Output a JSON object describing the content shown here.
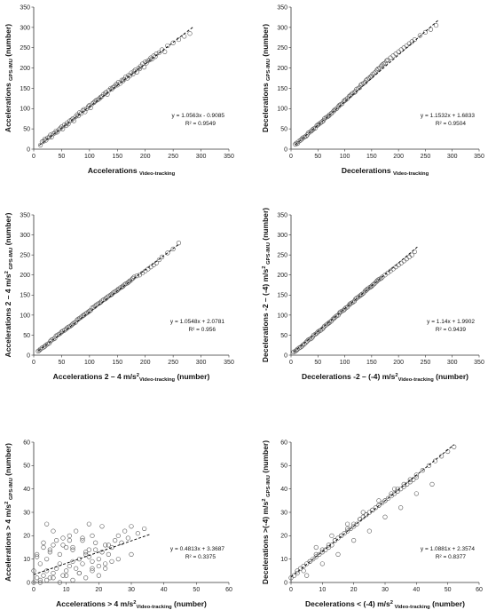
{
  "chart_data": [
    {
      "type": "scatter",
      "xlabel": "Accelerations Video-tracking",
      "ylabel": "Accelerations GPS-IMU (number)",
      "xlabel_parts": [
        {
          "t": "Accelerations "
        },
        {
          "t": "Video-tracking",
          "sub": true
        }
      ],
      "ylabel_parts": [
        {
          "t": "Accelerations "
        },
        {
          "t": "GPS-IMU",
          "sub": true
        },
        {
          "t": " (number)"
        }
      ],
      "xlim": [
        0,
        350
      ],
      "ylim": [
        0,
        350
      ],
      "xticks": [
        0,
        50,
        100,
        150,
        200,
        250,
        300,
        350
      ],
      "yticks": [
        0,
        50,
        100,
        150,
        200,
        250,
        300,
        350
      ],
      "equation": "y = 1.0563x - 0.9085",
      "r2": "R² = 0.9549",
      "slope": 1.0563,
      "intercept": -0.9085,
      "fit_range": [
        10,
        285
      ],
      "x": [
        12,
        15,
        18,
        20,
        22,
        25,
        28,
        30,
        32,
        35,
        38,
        40,
        42,
        45,
        48,
        50,
        52,
        55,
        58,
        60,
        62,
        65,
        68,
        70,
        72,
        75,
        78,
        80,
        82,
        85,
        88,
        90,
        92,
        95,
        98,
        100,
        102,
        105,
        108,
        110,
        112,
        115,
        118,
        120,
        122,
        125,
        128,
        130,
        132,
        135,
        138,
        140,
        142,
        145,
        148,
        150,
        152,
        155,
        158,
        160,
        162,
        165,
        168,
        170,
        172,
        175,
        178,
        180,
        182,
        185,
        188,
        190,
        192,
        195,
        198,
        200,
        202,
        205,
        208,
        210,
        212,
        215,
        218,
        220,
        225,
        230,
        235,
        240,
        250,
        260,
        270,
        280
      ],
      "y": [
        10,
        18,
        20,
        25,
        22,
        28,
        30,
        35,
        30,
        38,
        40,
        45,
        42,
        48,
        52,
        55,
        50,
        60,
        58,
        65,
        62,
        70,
        72,
        75,
        70,
        80,
        85,
        82,
        90,
        88,
        95,
        98,
        92,
        100,
        105,
        108,
        102,
        112,
        115,
        118,
        120,
        122,
        125,
        128,
        130,
        135,
        138,
        140,
        135,
        145,
        150,
        148,
        152,
        155,
        160,
        158,
        165,
        162,
        170,
        168,
        172,
        178,
        175,
        182,
        180,
        188,
        185,
        192,
        195,
        190,
        200,
        198,
        205,
        210,
        202,
        215,
        212,
        218,
        220,
        225,
        222,
        230,
        228,
        235,
        238,
        245,
        240,
        255,
        262,
        270,
        278,
        285
      ]
    },
    {
      "type": "scatter",
      "xlabel": "Decelerations Video-tracking",
      "ylabel": "Decelerations GPS-IMU (number)",
      "xlabel_parts": [
        {
          "t": "Decelerations "
        },
        {
          "t": "Video-tracking",
          "sub": true
        }
      ],
      "ylabel_parts": [
        {
          "t": "Decelerations "
        },
        {
          "t": "GPS-IMU",
          "sub": true
        },
        {
          "t": " (number)"
        }
      ],
      "xlim": [
        0,
        350
      ],
      "ylim": [
        0,
        350
      ],
      "xticks": [
        0,
        50,
        100,
        150,
        200,
        250,
        300,
        350
      ],
      "yticks": [
        0,
        50,
        100,
        150,
        200,
        250,
        300,
        350
      ],
      "equation": "y = 1.1532x + 1.6833",
      "r2": "R² = 0.9504",
      "slope": 1.1532,
      "intercept": 1.6833,
      "fit_range": [
        8,
        275
      ],
      "x": [
        8,
        10,
        12,
        15,
        18,
        20,
        22,
        25,
        28,
        30,
        32,
        35,
        38,
        40,
        42,
        45,
        48,
        50,
        52,
        55,
        58,
        60,
        62,
        65,
        68,
        70,
        72,
        75,
        78,
        80,
        82,
        85,
        88,
        90,
        92,
        95,
        98,
        100,
        102,
        105,
        108,
        110,
        112,
        115,
        118,
        120,
        122,
        125,
        128,
        130,
        132,
        135,
        138,
        140,
        142,
        145,
        148,
        150,
        152,
        155,
        158,
        160,
        162,
        165,
        168,
        170,
        172,
        175,
        178,
        180,
        185,
        190,
        195,
        200,
        205,
        210,
        215,
        220,
        225,
        230,
        240,
        250,
        260,
        270
      ],
      "y": [
        12,
        15,
        14,
        20,
        22,
        25,
        28,
        30,
        32,
        35,
        40,
        42,
        45,
        48,
        50,
        52,
        58,
        60,
        62,
        65,
        68,
        70,
        75,
        78,
        80,
        82,
        85,
        88,
        92,
        95,
        98,
        100,
        105,
        108,
        110,
        112,
        118,
        120,
        122,
        125,
        130,
        132,
        135,
        138,
        140,
        142,
        148,
        150,
        152,
        158,
        160,
        162,
        165,
        170,
        172,
        175,
        178,
        180,
        185,
        188,
        190,
        195,
        198,
        200,
        205,
        208,
        210,
        212,
        218,
        220,
        225,
        230,
        235,
        240,
        245,
        250,
        255,
        260,
        265,
        270,
        280,
        288,
        295,
        305
      ]
    },
    {
      "type": "scatter",
      "xlabel": "Accelerations 2 – 4 m/s² Video-tracking (number)",
      "ylabel": "Accelerations 2 – 4 m/s² GPS-IMU (number)",
      "xlabel_parts": [
        {
          "t": "Accelerations 2 – 4 m/s"
        },
        {
          "t": "2",
          "sup": true
        },
        {
          "t": "Video-tracking",
          "sub": true
        },
        {
          "t": " (number)"
        }
      ],
      "ylabel_parts": [
        {
          "t": "Accelerations 2 – 4 m/s"
        },
        {
          "t": "2",
          "sup": true
        },
        {
          "t": " GPS-IMU",
          "sub": true
        },
        {
          "t": " (number)"
        }
      ],
      "xlim": [
        0,
        350
      ],
      "ylim": [
        0,
        350
      ],
      "xticks": [
        0,
        50,
        100,
        150,
        200,
        250,
        300,
        350
      ],
      "yticks": [
        0,
        50,
        100,
        150,
        200,
        250,
        300,
        350
      ],
      "equation": "y = 1.0548x + 2.0781",
      "r2": "R² = 0.956",
      "slope": 1.0548,
      "intercept": 2.0781,
      "fit_range": [
        8,
        260
      ],
      "x": [
        8,
        10,
        12,
        15,
        18,
        20,
        22,
        25,
        28,
        30,
        32,
        35,
        38,
        40,
        42,
        45,
        48,
        50,
        52,
        55,
        58,
        60,
        62,
        65,
        68,
        70,
        72,
        75,
        78,
        80,
        82,
        85,
        88,
        90,
        92,
        95,
        98,
        100,
        102,
        105,
        108,
        110,
        112,
        115,
        118,
        120,
        122,
        125,
        128,
        130,
        132,
        135,
        138,
        140,
        142,
        145,
        148,
        150,
        152,
        155,
        158,
        160,
        162,
        165,
        168,
        170,
        172,
        175,
        178,
        180,
        185,
        190,
        195,
        200,
        205,
        210,
        215,
        220,
        225,
        230,
        240,
        250,
        260
      ],
      "y": [
        10,
        12,
        15,
        18,
        20,
        22,
        25,
        28,
        30,
        35,
        38,
        40,
        42,
        48,
        50,
        52,
        55,
        58,
        60,
        62,
        65,
        68,
        70,
        72,
        75,
        78,
        80,
        82,
        88,
        90,
        92,
        95,
        98,
        100,
        102,
        105,
        108,
        110,
        112,
        118,
        120,
        122,
        125,
        128,
        130,
        132,
        135,
        138,
        140,
        142,
        145,
        148,
        150,
        152,
        155,
        158,
        160,
        162,
        165,
        168,
        170,
        172,
        175,
        178,
        180,
        182,
        185,
        188,
        192,
        195,
        198,
        200,
        205,
        210,
        215,
        220,
        225,
        230,
        238,
        245,
        255,
        265,
        280
      ]
    },
    {
      "type": "scatter",
      "xlabel": "Decelerations -2 – (-4) m/s² Video-tracking (number)",
      "ylabel": "Decelerations -2 – (-4) m/s² GPS-IMU (number)",
      "xlabel_parts": [
        {
          "t": "Decelerations -2 – (-4) m/s"
        },
        {
          "t": "2",
          "sup": true
        },
        {
          "t": "Video-tracking",
          "sub": true
        },
        {
          "t": " (number)"
        }
      ],
      "ylabel_parts": [
        {
          "t": "Decelerations -2 – (-4) m/s"
        },
        {
          "t": "2",
          "sup": true
        },
        {
          "t": " GPS-IMU",
          "sub": true
        },
        {
          "t": " (number)"
        }
      ],
      "xlim": [
        0,
        350
      ],
      "ylim": [
        0,
        350
      ],
      "xticks": [
        0,
        50,
        100,
        150,
        200,
        250,
        300,
        350
      ],
      "yticks": [
        0,
        50,
        100,
        150,
        200,
        250,
        300,
        350
      ],
      "equation": "y = 1.14x + 1.9902",
      "r2": "R² = 0.9439",
      "slope": 1.14,
      "intercept": 1.9902,
      "fit_range": [
        5,
        235
      ],
      "x": [
        5,
        8,
        10,
        12,
        15,
        18,
        20,
        22,
        25,
        28,
        30,
        32,
        35,
        38,
        40,
        42,
        45,
        48,
        50,
        52,
        55,
        58,
        60,
        62,
        65,
        68,
        70,
        72,
        75,
        78,
        80,
        82,
        85,
        88,
        90,
        92,
        95,
        98,
        100,
        102,
        105,
        108,
        110,
        112,
        115,
        118,
        120,
        122,
        125,
        128,
        130,
        132,
        135,
        138,
        140,
        142,
        145,
        148,
        150,
        152,
        155,
        158,
        160,
        162,
        165,
        168,
        170,
        175,
        180,
        185,
        190,
        195,
        200,
        205,
        210,
        215,
        220,
        225,
        230
      ],
      "y": [
        8,
        10,
        12,
        15,
        18,
        20,
        22,
        25,
        28,
        32,
        35,
        38,
        40,
        42,
        45,
        50,
        52,
        55,
        58,
        60,
        62,
        65,
        68,
        72,
        75,
        78,
        80,
        82,
        85,
        90,
        92,
        95,
        98,
        100,
        105,
        108,
        110,
        112,
        115,
        118,
        120,
        125,
        128,
        130,
        132,
        135,
        140,
        142,
        145,
        148,
        150,
        152,
        155,
        160,
        162,
        165,
        168,
        170,
        172,
        175,
        178,
        182,
        185,
        188,
        190,
        192,
        195,
        200,
        205,
        210,
        215,
        220,
        225,
        230,
        235,
        240,
        245,
        250,
        258
      ]
    },
    {
      "type": "scatter",
      "xlabel": "Accelerations > 4 m/s² Video-tracking (number)",
      "ylabel": "Accelerations > 4 m/s² GPS-IMU (number)",
      "xlabel_parts": [
        {
          "t": "Accelerations > 4 m/s"
        },
        {
          "t": "2",
          "sup": true
        },
        {
          "t": "Video-tracking",
          "sub": true
        },
        {
          "t": " (number)"
        }
      ],
      "ylabel_parts": [
        {
          "t": "Accelerations > 4 m/s"
        },
        {
          "t": "2",
          "sup": true
        },
        {
          "t": " GPS-IMU",
          "sub": true
        },
        {
          "t": " (number)"
        }
      ],
      "xlim": [
        0,
        60
      ],
      "ylim": [
        0,
        60
      ],
      "xticks": [
        0,
        10,
        20,
        30,
        40,
        50,
        60
      ],
      "yticks": [
        0,
        10,
        20,
        30,
        40,
        50,
        60
      ],
      "equation": "y = 0.4813x + 3.3687",
      "r2": "R² = 0.3375",
      "slope": 0.4813,
      "intercept": 3.3687,
      "fit_range": [
        0,
        36
      ],
      "x": [
        0,
        1,
        2,
        3,
        4,
        5,
        6,
        7,
        8,
        9,
        10,
        11,
        12,
        13,
        14,
        15,
        16,
        17,
        18,
        19,
        20,
        21,
        22,
        23,
        24,
        25,
        26,
        27,
        28,
        30,
        32,
        34,
        1,
        3,
        5,
        7,
        9,
        11,
        13,
        15,
        17,
        19,
        21,
        2,
        4,
        6,
        8,
        10,
        12,
        14,
        16,
        18,
        20,
        22,
        3,
        6,
        9,
        12,
        15,
        18,
        0,
        2,
        4,
        8,
        12,
        16,
        20,
        24,
        1,
        5,
        10,
        14,
        18,
        22,
        26,
        30,
        6,
        11,
        17,
        23,
        29,
        4
      ],
      "y": [
        0,
        2,
        1,
        3,
        5,
        2,
        4,
        6,
        8,
        3,
        5,
        7,
        9,
        6,
        10,
        8,
        12,
        11,
        9,
        14,
        10,
        13,
        16,
        12,
        15,
        18,
        20,
        17,
        22,
        24,
        21,
        23,
        12,
        15,
        14,
        18,
        16,
        20,
        22,
        19,
        25,
        17,
        24,
        0,
        1,
        2,
        0,
        3,
        1,
        4,
        2,
        5,
        3,
        6,
        17,
        16,
        19,
        15,
        18,
        20,
        5,
        8,
        10,
        12,
        14,
        13,
        7,
        9,
        11,
        13,
        15,
        4,
        6,
        8,
        10,
        12,
        22,
        18,
        14,
        16,
        19,
        25
      ]
    },
    {
      "type": "scatter",
      "xlabel": "Decelerations < (-4) m/s² Video-tracking (number)",
      "ylabel": "Decelerations >(-4) m/s² GPS-IMU (number)",
      "xlabel_parts": [
        {
          "t": "Decelerations < (-4) m/s"
        },
        {
          "t": "2",
          "sup": true
        },
        {
          "t": " Video-tracking",
          "sub": true
        },
        {
          "t": " (number)"
        }
      ],
      "ylabel_parts": [
        {
          "t": "Decelerations >(-4) m/s"
        },
        {
          "t": "2",
          "sup": true
        },
        {
          "t": " GPS-IMU",
          "sub": true
        },
        {
          "t": " (number)"
        }
      ],
      "xlim": [
        0,
        60
      ],
      "ylim": [
        0,
        60
      ],
      "xticks": [
        0,
        10,
        20,
        30,
        40,
        50,
        60
      ],
      "yticks": [
        0,
        10,
        20,
        30,
        40,
        50,
        60
      ],
      "equation": "y = 1.0881x + 2.3574",
      "r2": "R² = 0.8377",
      "slope": 1.0881,
      "intercept": 2.3574,
      "fit_range": [
        0,
        52
      ],
      "x": [
        0,
        1,
        2,
        3,
        4,
        5,
        6,
        7,
        8,
        9,
        10,
        11,
        12,
        13,
        14,
        15,
        16,
        17,
        18,
        19,
        20,
        21,
        22,
        23,
        24,
        25,
        26,
        27,
        28,
        29,
        30,
        31,
        32,
        33,
        34,
        35,
        36,
        37,
        38,
        39,
        40,
        42,
        44,
        46,
        48,
        50,
        52,
        2,
        4,
        6,
        8,
        10,
        12,
        14,
        16,
        18,
        20,
        22,
        24,
        26,
        28,
        30,
        32,
        34,
        36,
        38,
        40,
        5,
        10,
        15,
        20,
        25,
        30,
        35,
        40,
        45,
        8,
        13,
        18,
        23,
        28,
        33
      ],
      "y": [
        2,
        3,
        4,
        6,
        5,
        8,
        9,
        10,
        11,
        12,
        13,
        14,
        15,
        16,
        18,
        19,
        20,
        21,
        22,
        23,
        24,
        25,
        27,
        28,
        29,
        30,
        31,
        32,
        33,
        34,
        35,
        36,
        37,
        38,
        39,
        40,
        41,
        42,
        43,
        44,
        45,
        48,
        50,
        52,
        54,
        56,
        58,
        5,
        7,
        9,
        12,
        14,
        16,
        18,
        20,
        23,
        25,
        27,
        29,
        31,
        33,
        35,
        38,
        40,
        42,
        44,
        46,
        3,
        8,
        12,
        18,
        22,
        28,
        32,
        38,
        42,
        15,
        20,
        25,
        30,
        35,
        40
      ]
    }
  ]
}
